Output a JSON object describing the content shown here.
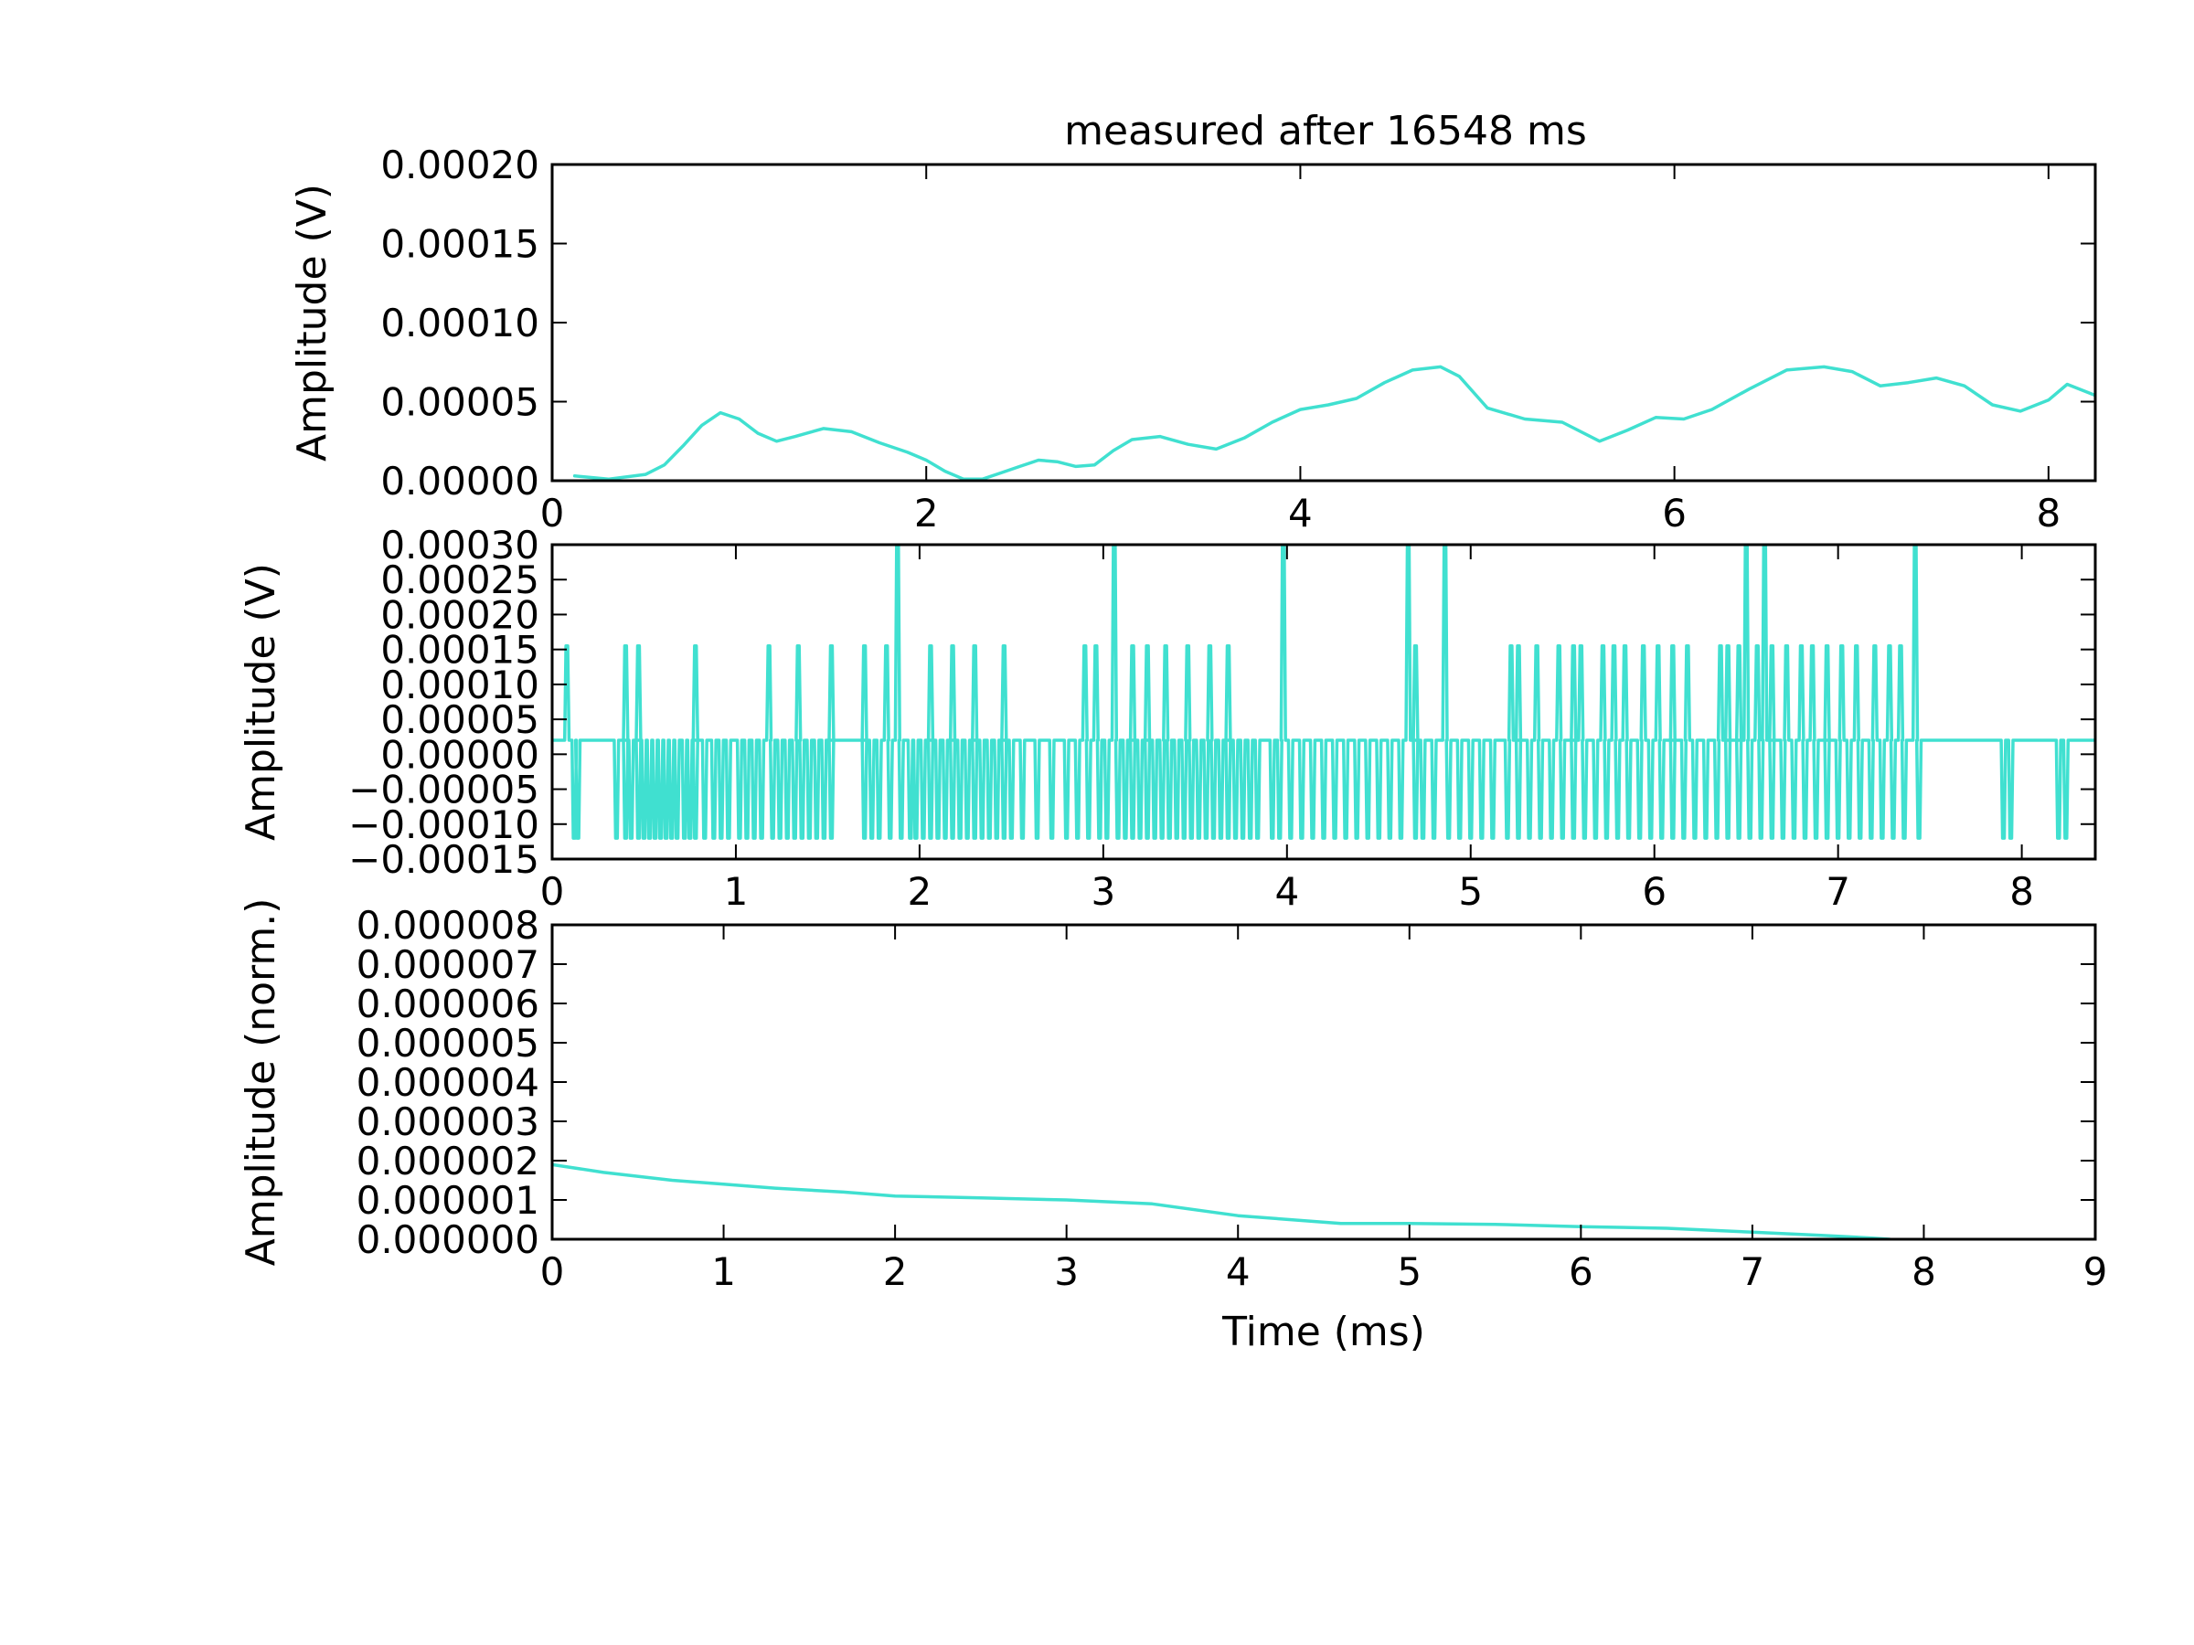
{
  "chart_data": [
    {
      "type": "line",
      "title": "measured after 16548 ms",
      "xlabel": "",
      "ylabel": "Amplitude (V)",
      "xlim": [
        0,
        8.25
      ],
      "ylim": [
        0,
        0.0002
      ],
      "xticks": [
        0,
        2,
        4,
        6,
        8
      ],
      "xtick_labels": [
        "0",
        "2",
        "4",
        "6",
        "8"
      ],
      "yticks": [
        0,
        5e-05,
        0.0001,
        0.00015,
        0.0002
      ],
      "ytick_labels": [
        "0.00000",
        "0.00005",
        "0.00010",
        "0.00015",
        "0.00020"
      ],
      "grid": false,
      "color": "#40e0d0",
      "series": [
        {
          "x": [
            0.12,
            0.3,
            0.5,
            0.6,
            0.7,
            0.8,
            0.9,
            1.0,
            1.1,
            1.2,
            1.3,
            1.45,
            1.6,
            1.75,
            1.9,
            2.0,
            2.1,
            2.2,
            2.3,
            2.4,
            2.5,
            2.6,
            2.7,
            2.8,
            2.9,
            3.0,
            3.1,
            3.25,
            3.4,
            3.55,
            3.7,
            3.85,
            4.0,
            4.15,
            4.3,
            4.45,
            4.6,
            4.75,
            4.85,
            5.0,
            5.2,
            5.4,
            5.6,
            5.75,
            5.9,
            6.05,
            6.2,
            6.4,
            6.6,
            6.8,
            6.95,
            7.1,
            7.25,
            7.4,
            7.55,
            7.7,
            7.85,
            8.0,
            8.1,
            8.25
          ],
          "y": [
            3e-06,
            1e-06,
            4e-06,
            1e-05,
            2.2e-05,
            3.5e-05,
            4.3e-05,
            3.9e-05,
            3e-05,
            2.5e-05,
            2.8e-05,
            3.3e-05,
            3.1e-05,
            2.4e-05,
            1.8e-05,
            1.3e-05,
            6e-06,
            1e-06,
            1e-06,
            5e-06,
            9e-06,
            1.3e-05,
            1.2e-05,
            9e-06,
            1e-05,
            1.9e-05,
            2.6e-05,
            2.8e-05,
            2.3e-05,
            2e-05,
            2.7e-05,
            3.7e-05,
            4.5e-05,
            4.8e-05,
            5.2e-05,
            6.2e-05,
            7e-05,
            7.2e-05,
            6.6e-05,
            4.6e-05,
            3.9e-05,
            3.7e-05,
            2.5e-05,
            3.2e-05,
            4e-05,
            3.9e-05,
            4.5e-05,
            5.8e-05,
            7e-05,
            7.2e-05,
            6.9e-05,
            6e-05,
            6.2e-05,
            6.5e-05,
            6e-05,
            4.8e-05,
            4.4e-05,
            5.1e-05,
            6.1e-05,
            5.4e-05
          ]
        }
      ]
    },
    {
      "type": "line",
      "title": "",
      "xlabel": "",
      "ylabel": "Amplitude (V)",
      "xlim": [
        0,
        8.4
      ],
      "ylim": [
        -0.00015,
        0.0003
      ],
      "xticks": [
        0,
        1,
        2,
        3,
        4,
        5,
        6,
        7,
        8
      ],
      "xtick_labels": [
        "0",
        "1",
        "2",
        "3",
        "4",
        "5",
        "6",
        "7",
        "8"
      ],
      "yticks": [
        -0.00015,
        -0.0001,
        -5e-05,
        0,
        5e-05,
        0.0001,
        0.00015,
        0.0002,
        0.00025,
        0.0003
      ],
      "ytick_labels": [
        "−0.00015",
        "−0.00010",
        "−0.00005",
        "0.00000",
        "0.00005",
        "0.00010",
        "0.00015",
        "0.00020",
        "0.00025",
        "0.00030"
      ],
      "grid": false,
      "color": "#40e0d0",
      "levels": {
        "base": 2e-05,
        "low": -0.00012,
        "high": 0.000155,
        "max": 0.0003
      },
      "low_spikes": [
        0.12,
        0.14,
        0.35,
        0.4,
        0.43,
        0.47,
        0.5,
        0.53,
        0.56,
        0.59,
        0.62,
        0.65,
        0.68,
        0.72,
        0.75,
        0.78,
        0.83,
        0.88,
        0.92,
        0.96,
        1.02,
        1.06,
        1.1,
        1.14,
        1.2,
        1.24,
        1.28,
        1.32,
        1.36,
        1.4,
        1.44,
        1.48,
        1.52,
        1.7,
        1.74,
        1.78,
        1.84,
        1.9,
        1.95,
        1.98,
        2.02,
        2.06,
        2.1,
        2.14,
        2.18,
        2.22,
        2.26,
        2.3,
        2.34,
        2.38,
        2.42,
        2.46,
        2.5,
        2.56,
        2.64,
        2.72,
        2.8,
        2.86,
        2.92,
        2.98,
        3.02,
        3.08,
        3.12,
        3.16,
        3.2,
        3.24,
        3.28,
        3.32,
        3.36,
        3.4,
        3.44,
        3.48,
        3.52,
        3.56,
        3.6,
        3.64,
        3.68,
        3.72,
        3.76,
        3.8,
        3.84,
        3.92,
        3.96,
        4.02,
        4.08,
        4.14,
        4.2,
        4.26,
        4.32,
        4.38,
        4.44,
        4.5,
        4.56,
        4.62,
        4.7,
        4.74,
        4.8,
        4.88,
        4.94,
        5.0,
        5.06,
        5.12,
        5.2,
        5.26,
        5.32,
        5.38,
        5.44,
        5.5,
        5.56,
        5.62,
        5.68,
        5.74,
        5.8,
        5.86,
        5.92,
        5.98,
        6.04,
        6.1,
        6.16,
        6.22,
        6.28,
        6.34,
        6.4,
        6.46,
        6.52,
        6.58,
        6.64,
        6.7,
        6.76,
        6.82,
        6.88,
        6.94,
        7.0,
        7.06,
        7.12,
        7.18,
        7.24,
        7.3,
        7.36,
        7.44,
        7.9,
        7.94,
        8.2,
        8.24
      ],
      "high_spikes": [
        0.08,
        0.4,
        0.47,
        0.78,
        1.18,
        1.34,
        1.52,
        1.7,
        1.82,
        2.06,
        2.18,
        2.3,
        2.46,
        2.9,
        2.96,
        3.16,
        3.24,
        3.34,
        3.46,
        3.58,
        3.68,
        4.7,
        5.22,
        5.26,
        5.36,
        5.48,
        5.56,
        5.6,
        5.72,
        5.78,
        5.84,
        5.94,
        6.02,
        6.1,
        6.18,
        6.36,
        6.4,
        6.46,
        6.56,
        6.64,
        6.72,
        6.8,
        6.86,
        6.94,
        7.02,
        7.1,
        7.2,
        7.28,
        7.34
      ],
      "max_spikes": [
        1.88,
        3.06,
        3.98,
        4.66,
        4.86,
        6.5,
        6.6,
        7.42
      ]
    },
    {
      "type": "line",
      "title": "",
      "xlabel": "Time (ms)",
      "ylabel": "Amplitude (norm.)",
      "xlim": [
        0,
        9
      ],
      "ylim": [
        0,
        8e-06
      ],
      "xticks": [
        0,
        1,
        2,
        3,
        4,
        5,
        6,
        7,
        8,
        9
      ],
      "xtick_labels": [
        "0",
        "1",
        "2",
        "3",
        "4",
        "5",
        "6",
        "7",
        "8",
        "9"
      ],
      "yticks": [
        0,
        1e-06,
        2e-06,
        3e-06,
        4e-06,
        5e-06,
        6e-06,
        7e-06,
        8e-06
      ],
      "ytick_labels": [
        "0.000000",
        "0.000001",
        "0.000002",
        "0.000003",
        "0.000004",
        "0.000005",
        "0.000006",
        "0.000007",
        "0.000008"
      ],
      "grid": false,
      "color": "#40e0d0",
      "series": [
        {
          "x": [
            0,
            0.3,
            0.7,
            1.0,
            1.3,
            1.7,
            2.0,
            2.5,
            3.0,
            3.5,
            4.0,
            4.3,
            4.6,
            5.0,
            5.5,
            6.0,
            6.5,
            7.0,
            7.4,
            7.7,
            7.8
          ],
          "y": [
            1.9e-06,
            1.7e-06,
            1.5e-06,
            1.4e-06,
            1.3e-06,
            1.2e-06,
            1.1e-06,
            1.05e-06,
            1e-06,
            9e-07,
            6e-07,
            5e-07,
            4e-07,
            4e-07,
            3.8e-07,
            3.2e-07,
            2.8e-07,
            1.8e-07,
            1e-07,
            3e-08,
            0
          ]
        }
      ]
    }
  ]
}
